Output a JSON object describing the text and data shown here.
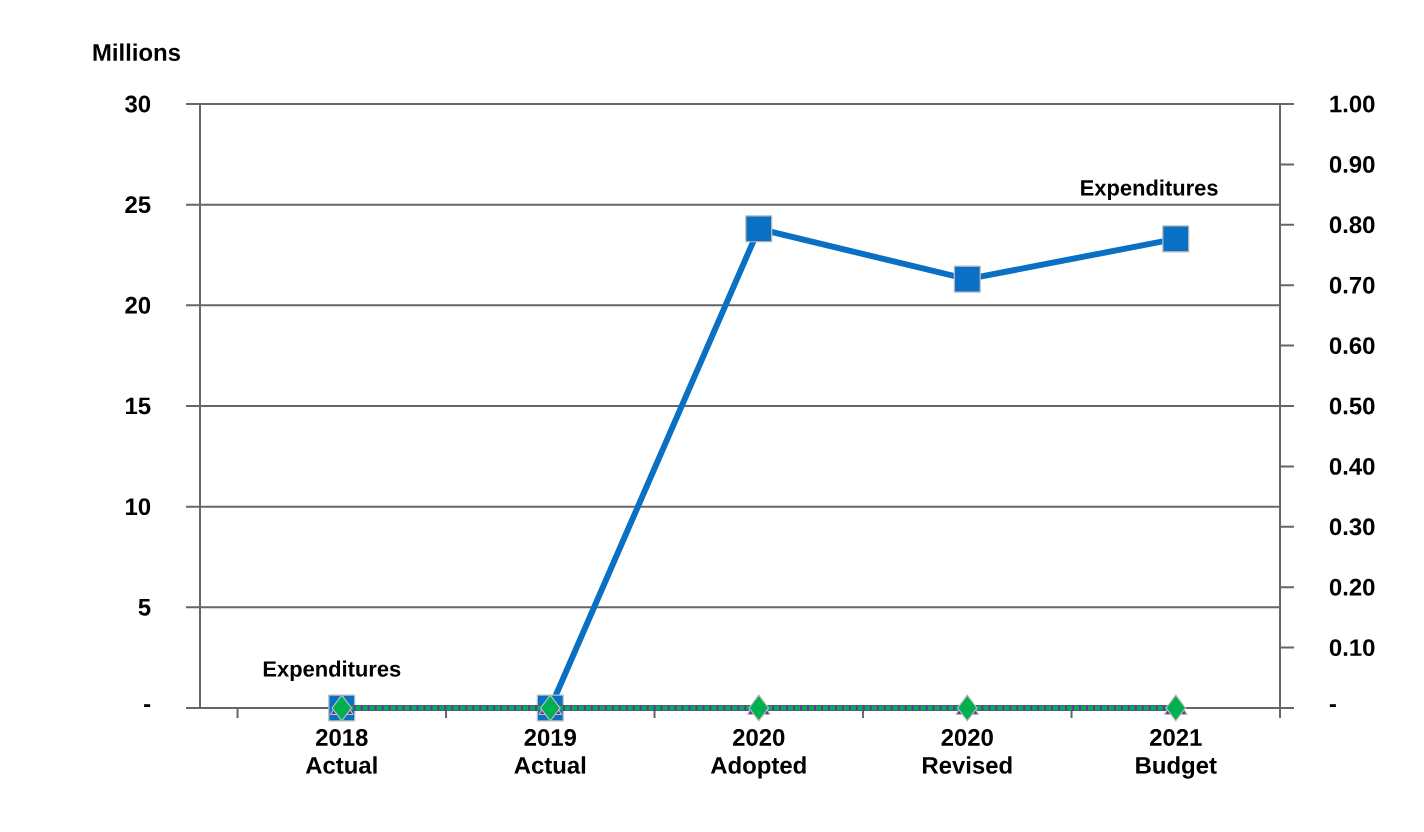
{
  "chart_data": {
    "type": "line",
    "ylabel": "Millions",
    "categories": [
      "2018 Actual",
      "2019 Actual",
      "2020 Adopted",
      "2020 Revised",
      "2021 Budget"
    ],
    "series": [
      {
        "name": "Expenditures",
        "color": "#0a70c4",
        "marker": "square",
        "line_style": "solid",
        "values": [
          0,
          0,
          23.8,
          21.3,
          23.3
        ]
      },
      {
        "color": "#7030a0",
        "marker": "triangle",
        "line_style": "solid",
        "axis": "y2",
        "values": [
          0,
          0,
          0,
          0,
          0
        ]
      },
      {
        "color": "#00b050",
        "marker": "diamond",
        "line_style": "dotted",
        "axis": "y2",
        "values": [
          0,
          0,
          0,
          0,
          0
        ]
      }
    ],
    "annotations": [
      {
        "text": "Expenditures",
        "x": "2018 Actual",
        "y": 0
      }
    ],
    "ylim": [
      0,
      30
    ],
    "yticks": [
      {
        "value": 0,
        "label": "-"
      },
      5,
      10,
      15,
      20,
      25,
      30
    ],
    "y2lim": [
      0,
      1
    ],
    "y2ticks": [
      {
        "value": 0,
        "label": "-"
      },
      {
        "value": 0.1,
        "label": "0.10"
      },
      {
        "value": 0.2,
        "label": "0.20"
      },
      {
        "value": 0.3,
        "label": "0.30"
      },
      {
        "value": 0.4,
        "label": "0.40"
      },
      {
        "value": 0.5,
        "label": "0.50"
      },
      {
        "value": 0.6,
        "label": "0.60"
      },
      {
        "value": 0.7,
        "label": "0.70"
      },
      {
        "value": 0.8,
        "label": "0.80"
      },
      {
        "value": 0.9,
        "label": "0.90"
      },
      {
        "value": 1,
        "label": "1.00"
      }
    ],
    "grid": "y"
  }
}
